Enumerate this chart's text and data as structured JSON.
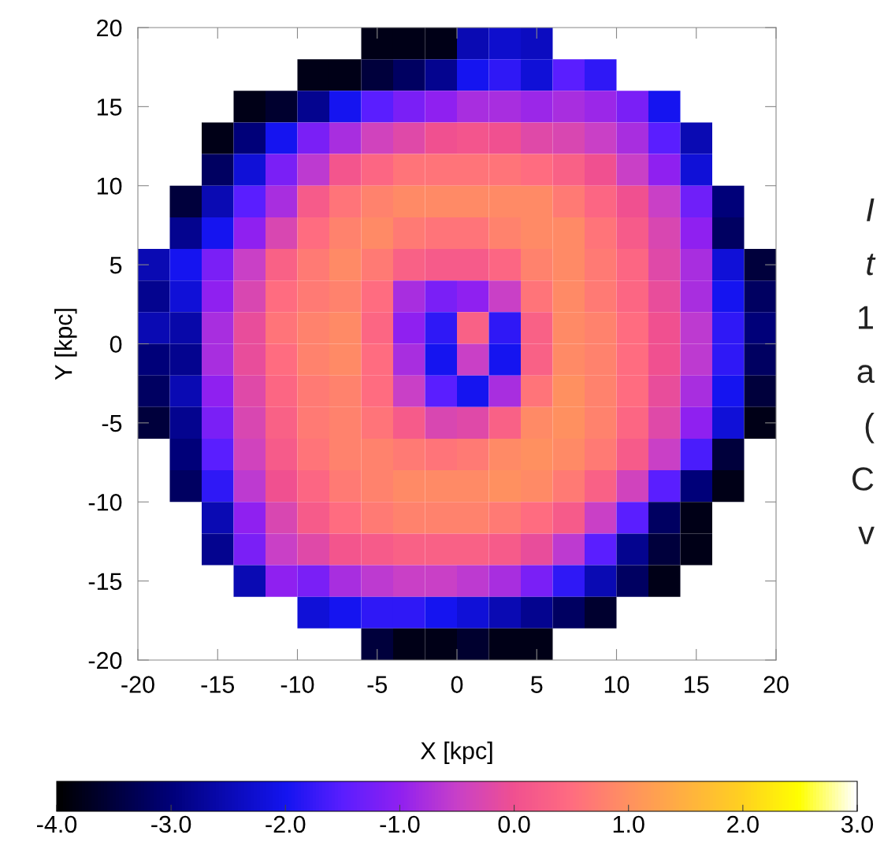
{
  "chart_data": {
    "type": "heatmap",
    "xlabel": "X [kpc]",
    "ylabel": "Y [kpc]",
    "clim": [
      -4,
      3
    ],
    "cticks": [
      {
        "value": -4,
        "label": "-4.0"
      },
      {
        "value": -3,
        "label": "-3.0"
      },
      {
        "value": -2,
        "label": "-2.0"
      },
      {
        "value": -1,
        "label": "-1.0"
      },
      {
        "value": 0,
        "label": "0.0"
      },
      {
        "value": 1,
        "label": "1.0"
      },
      {
        "value": 2,
        "label": "2.0"
      },
      {
        "value": 3,
        "label": "3.0"
      }
    ],
    "x": [
      -19,
      -17,
      -15,
      -13,
      -11,
      -9,
      -7,
      -5,
      -3,
      -1,
      1,
      3,
      5,
      7,
      9,
      11,
      13,
      15,
      17,
      19
    ],
    "y": [
      19,
      17,
      15,
      13,
      11,
      9,
      7,
      5,
      3,
      1,
      -1,
      -3,
      -5,
      -7,
      -9,
      -11,
      -13,
      -15,
      -17,
      -19
    ],
    "xlim": [
      -20,
      20
    ],
    "ylim": [
      -20,
      20
    ],
    "xticks": [
      -20,
      -15,
      -10,
      -5,
      0,
      5,
      10,
      15,
      20
    ],
    "yticks": [
      -20,
      -15,
      -10,
      -5,
      0,
      5,
      10,
      15,
      20
    ],
    "cells": [
      [
        null,
        null,
        null,
        null,
        null,
        null,
        null,
        -3.8,
        -3.8,
        -3.8,
        -2.5,
        -2.3,
        -2.4,
        null,
        null,
        null,
        null,
        null,
        null,
        null
      ],
      [
        null,
        null,
        null,
        null,
        null,
        -3.8,
        -3.8,
        -3.5,
        -3.2,
        -2.8,
        -2.0,
        -1.8,
        -2.2,
        -1.5,
        -1.8,
        null,
        null,
        null,
        null,
        null
      ],
      [
        null,
        null,
        null,
        -3.8,
        -3.6,
        -2.8,
        -2.0,
        -1.5,
        -1.2,
        -1.0,
        -0.8,
        -0.8,
        -0.9,
        -0.8,
        -0.9,
        -1.2,
        -2.0,
        null,
        null,
        null
      ],
      [
        null,
        null,
        -3.8,
        -3.0,
        -2.0,
        -1.2,
        -0.8,
        -0.4,
        -0.2,
        0.0,
        0.1,
        0.0,
        -0.2,
        -0.3,
        -0.5,
        -0.8,
        -1.5,
        -2.5,
        null,
        null
      ],
      [
        null,
        null,
        -3.2,
        -2.2,
        -1.2,
        -0.6,
        0.1,
        0.4,
        0.6,
        0.6,
        0.6,
        0.6,
        0.5,
        0.3,
        0.0,
        -0.5,
        -1.0,
        -2.2,
        null,
        null
      ],
      [
        null,
        -3.5,
        -2.5,
        -1.5,
        -0.8,
        0.2,
        0.6,
        0.8,
        0.9,
        0.9,
        0.9,
        0.9,
        0.9,
        0.7,
        0.4,
        0.0,
        -0.5,
        -1.3,
        -3.0,
        null
      ],
      [
        null,
        -2.8,
        -2.0,
        -1.0,
        -0.3,
        0.5,
        0.8,
        0.9,
        0.7,
        0.6,
        0.6,
        0.8,
        0.9,
        0.9,
        0.6,
        0.2,
        -0.3,
        -1.0,
        -3.2,
        null
      ],
      [
        -2.5,
        -2.0,
        -1.2,
        -0.5,
        0.3,
        0.7,
        0.9,
        0.7,
        0.3,
        0.2,
        0.2,
        0.4,
        0.8,
        0.9,
        0.7,
        0.4,
        -0.2,
        -0.8,
        -2.2,
        -3.5
      ],
      [
        -2.8,
        -2.2,
        -1.0,
        -0.3,
        0.5,
        0.7,
        0.8,
        0.5,
        -0.8,
        -1.2,
        -1.0,
        -0.5,
        0.6,
        0.9,
        0.7,
        0.4,
        -0.1,
        -0.8,
        -2.0,
        -3.2
      ],
      [
        -2.5,
        -2.6,
        -0.8,
        -0.1,
        0.6,
        0.8,
        0.9,
        0.4,
        -1.0,
        -1.8,
        0.3,
        -1.8,
        0.3,
        0.9,
        0.8,
        0.5,
        0.0,
        -0.6,
        -1.8,
        -3.0
      ],
      [
        -3.0,
        -2.8,
        -0.8,
        -0.1,
        0.5,
        0.8,
        0.9,
        0.5,
        -0.8,
        -2.0,
        -0.5,
        -2.0,
        0.3,
        0.9,
        0.8,
        0.5,
        0.0,
        -0.6,
        -1.8,
        -3.2
      ],
      [
        -3.2,
        -2.5,
        -1.0,
        -0.2,
        0.4,
        0.7,
        0.8,
        0.5,
        -0.5,
        -1.5,
        -2.0,
        -0.8,
        0.6,
        1.0,
        0.8,
        0.5,
        -0.1,
        -0.8,
        -2.0,
        -3.5
      ],
      [
        -3.5,
        -2.8,
        -1.2,
        -0.3,
        0.3,
        0.7,
        0.8,
        0.6,
        0.2,
        -0.3,
        -0.2,
        0.3,
        0.9,
        1.0,
        0.8,
        0.4,
        -0.2,
        -1.0,
        -2.2,
        -3.8
      ],
      [
        null,
        -3.0,
        -1.5,
        -0.4,
        0.2,
        0.6,
        0.8,
        0.8,
        0.7,
        0.6,
        0.7,
        0.9,
        1.0,
        0.9,
        0.7,
        0.2,
        -0.5,
        -1.6,
        -3.5,
        null
      ],
      [
        null,
        -3.2,
        -1.8,
        -0.6,
        0.0,
        0.4,
        0.7,
        0.8,
        0.9,
        0.9,
        0.9,
        1.0,
        0.9,
        0.7,
        0.3,
        -0.4,
        -1.5,
        -3.0,
        -3.8,
        null
      ],
      [
        null,
        null,
        -2.5,
        -1.0,
        -0.3,
        0.2,
        0.5,
        0.7,
        0.8,
        0.8,
        0.8,
        0.7,
        0.5,
        0.2,
        -0.5,
        -1.5,
        -3.2,
        -3.8,
        null,
        null
      ],
      [
        null,
        null,
        -2.8,
        -1.2,
        -0.5,
        -0.2,
        0.1,
        0.2,
        0.3,
        0.3,
        0.3,
        0.2,
        -0.1,
        -0.6,
        -1.5,
        -2.8,
        -3.5,
        -3.8,
        null,
        null
      ],
      [
        null,
        null,
        null,
        -2.5,
        -1.0,
        -1.2,
        -0.8,
        -0.6,
        -0.5,
        -0.5,
        -0.6,
        -0.8,
        -1.2,
        -1.8,
        -2.5,
        -3.2,
        -3.8,
        null,
        null,
        null
      ],
      [
        null,
        null,
        null,
        null,
        null,
        -2.2,
        -2.0,
        -1.8,
        -1.8,
        -2.0,
        -2.2,
        -2.5,
        -2.8,
        -3.2,
        -3.6,
        null,
        null,
        null,
        null,
        null
      ],
      [
        null,
        null,
        null,
        null,
        null,
        null,
        null,
        -3.5,
        -3.8,
        -3.8,
        -3.6,
        -3.8,
        -3.8,
        null,
        null,
        null,
        null,
        null,
        null,
        null
      ]
    ],
    "annotations": [
      "I",
      "t",
      "1",
      "a",
      "(",
      "C",
      "v"
    ]
  }
}
